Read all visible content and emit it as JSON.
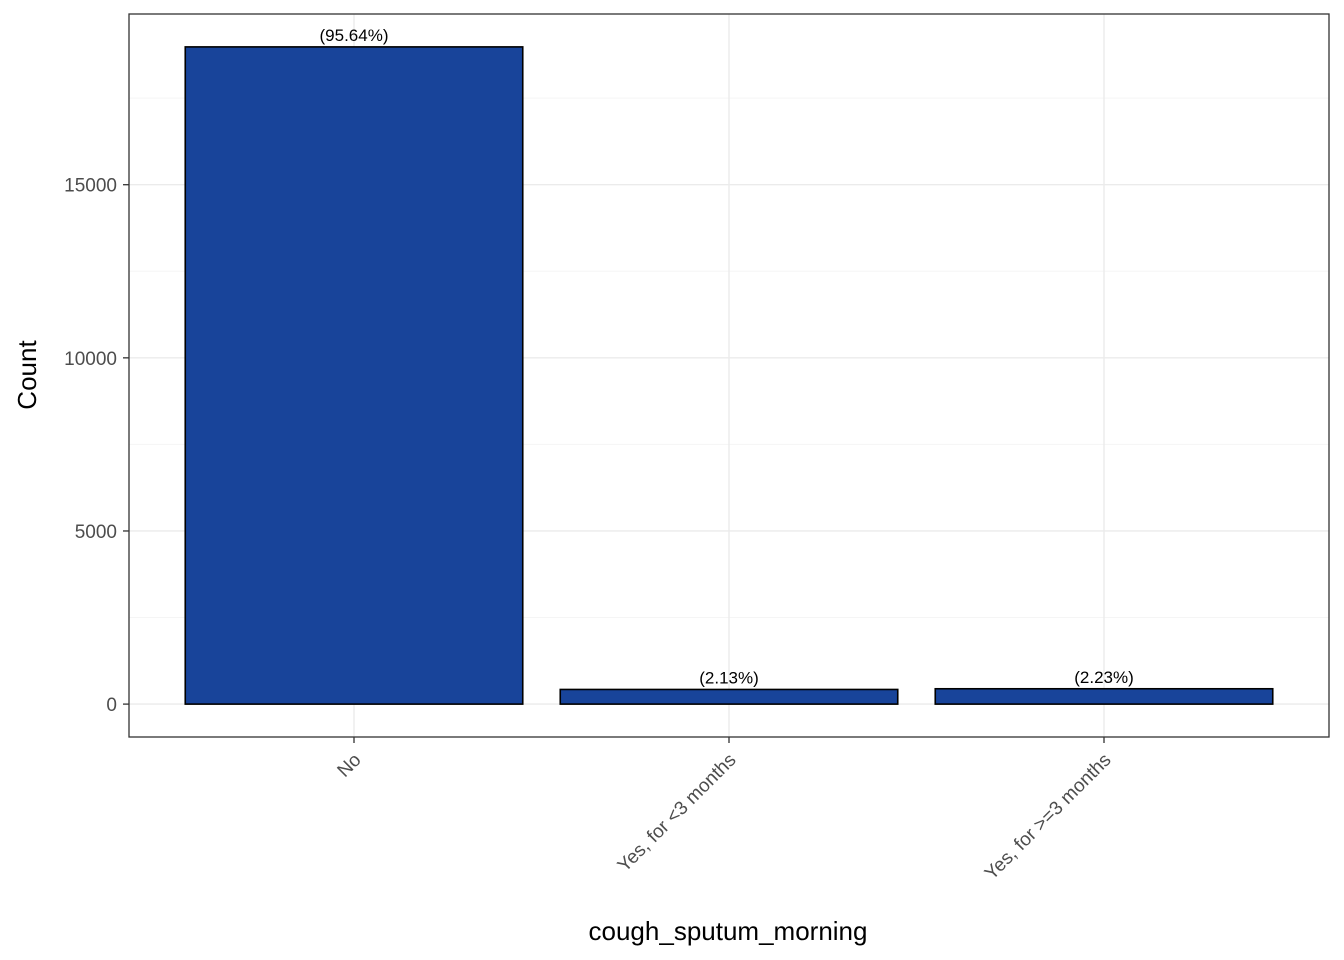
{
  "chart_data": {
    "type": "bar",
    "xlabel": "cough_sputum_morning",
    "ylabel": "Count",
    "categories": [
      "No",
      "Yes, for <3 months",
      "Yes, for >=3 months"
    ],
    "values": [
      18980,
      423,
      443
    ],
    "percent_labels": [
      "(95.64%)",
      "(2.13%)",
      "(2.23%)"
    ],
    "ylim": [
      -950,
      19930
    ],
    "yticks": [
      0,
      5000,
      10000,
      15000
    ],
    "ytick_labels": [
      "0",
      "5000",
      "10000",
      "15000"
    ],
    "grid": true,
    "legend": "none",
    "colors": {
      "bar_fill": "#18449A",
      "bar_stroke": "#000000",
      "grid_major": "#EBEBEB",
      "grid_minor": "#F5F5F5",
      "panel_border": "#333333"
    }
  }
}
